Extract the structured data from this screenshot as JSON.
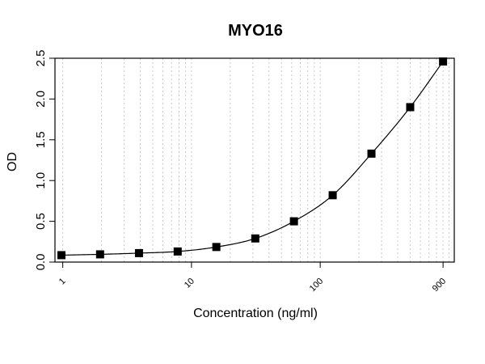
{
  "chart_data": {
    "type": "scatter",
    "title": "MYO16",
    "xlabel": "Concentration (ng/ml)",
    "ylabel": "OD",
    "x_scale": "log",
    "xlim": [
      0.87,
      1100
    ],
    "ylim": [
      0,
      2.5
    ],
    "x_ticks": [
      1,
      10,
      100,
      900
    ],
    "x_tick_labels": [
      "1",
      "10",
      "100",
      "900"
    ],
    "y_ticks": [
      0,
      0.5,
      1,
      1.5,
      2,
      2.5
    ],
    "y_tick_labels": [
      "0.0",
      "0.5",
      "1.0",
      "1.5",
      "2.0",
      "2.5"
    ],
    "grid": "vertical dotted (log minor)",
    "fit_curve": "smooth line through points",
    "series": [
      {
        "x": [
          0.977,
          1.95,
          3.91,
          7.81,
          15.6,
          31.3,
          62.5,
          125,
          250,
          500,
          900
        ],
        "y": [
          0.085,
          0.095,
          0.11,
          0.13,
          0.185,
          0.29,
          0.5,
          0.82,
          1.33,
          1.9,
          2.46
        ]
      }
    ]
  }
}
